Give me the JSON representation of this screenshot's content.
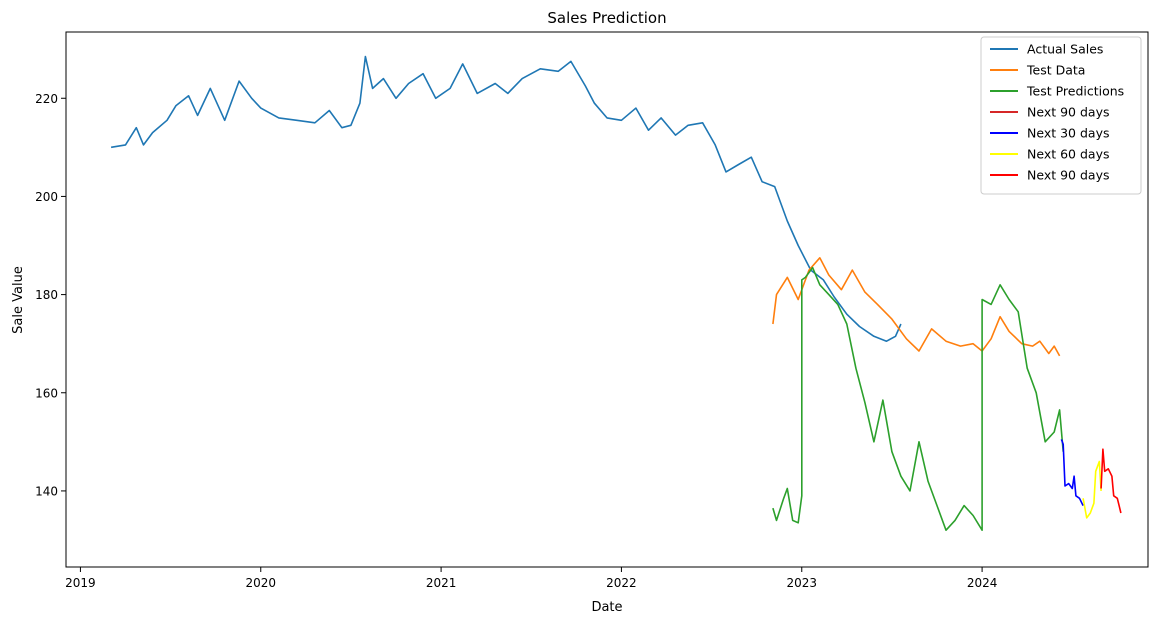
{
  "chart_data": {
    "type": "line",
    "title": "Sales Prediction",
    "xlabel": "Date",
    "ylabel": "Sale Value",
    "xlim": [
      2018.92,
      2024.92
    ],
    "ylim": [
      124.5,
      233.5
    ],
    "x_ticks": [
      {
        "value": 2019,
        "label": "2019"
      },
      {
        "value": 2020,
        "label": "2020"
      },
      {
        "value": 2021,
        "label": "2021"
      },
      {
        "value": 2022,
        "label": "2022"
      },
      {
        "value": 2023,
        "label": "2023"
      },
      {
        "value": 2024,
        "label": "2024"
      }
    ],
    "y_ticks": [
      {
        "value": 140,
        "label": "140"
      },
      {
        "value": 160,
        "label": "160"
      },
      {
        "value": 180,
        "label": "180"
      },
      {
        "value": 200,
        "label": "200"
      },
      {
        "value": 220,
        "label": "220"
      }
    ],
    "legend_position": "top-right",
    "series": [
      {
        "name": "Actual Sales",
        "color": "#1f77b4",
        "points": [
          [
            2019.17,
            210.0
          ],
          [
            2019.25,
            210.5
          ],
          [
            2019.31,
            214.0
          ],
          [
            2019.35,
            210.5
          ],
          [
            2019.4,
            213.0
          ],
          [
            2019.48,
            215.5
          ],
          [
            2019.53,
            218.5
          ],
          [
            2019.6,
            220.5
          ],
          [
            2019.65,
            216.5
          ],
          [
            2019.72,
            222.0
          ],
          [
            2019.8,
            215.5
          ],
          [
            2019.88,
            223.5
          ],
          [
            2019.95,
            220.0
          ],
          [
            2020.0,
            218.0
          ],
          [
            2020.1,
            216.0
          ],
          [
            2020.2,
            215.5
          ],
          [
            2020.3,
            215.0
          ],
          [
            2020.38,
            217.5
          ],
          [
            2020.45,
            214.0
          ],
          [
            2020.5,
            214.5
          ],
          [
            2020.55,
            219.0
          ],
          [
            2020.58,
            228.5
          ],
          [
            2020.62,
            222.0
          ],
          [
            2020.68,
            224.0
          ],
          [
            2020.75,
            220.0
          ],
          [
            2020.82,
            223.0
          ],
          [
            2020.9,
            225.0
          ],
          [
            2020.97,
            220.0
          ],
          [
            2021.05,
            222.0
          ],
          [
            2021.12,
            227.0
          ],
          [
            2021.2,
            221.0
          ],
          [
            2021.3,
            223.0
          ],
          [
            2021.37,
            221.0
          ],
          [
            2021.45,
            224.0
          ],
          [
            2021.55,
            226.0
          ],
          [
            2021.65,
            225.5
          ],
          [
            2021.72,
            227.5
          ],
          [
            2021.8,
            222.5
          ],
          [
            2021.85,
            219.0
          ],
          [
            2021.92,
            216.0
          ],
          [
            2022.0,
            215.5
          ],
          [
            2022.08,
            218.0
          ],
          [
            2022.15,
            213.5
          ],
          [
            2022.22,
            216.0
          ],
          [
            2022.3,
            212.5
          ],
          [
            2022.37,
            214.5
          ],
          [
            2022.45,
            215.0
          ],
          [
            2022.52,
            210.5
          ],
          [
            2022.58,
            205.0
          ],
          [
            2022.65,
            206.5
          ],
          [
            2022.72,
            208.0
          ],
          [
            2022.78,
            203.0
          ],
          [
            2022.85,
            202.0
          ],
          [
            2022.92,
            195.0
          ],
          [
            2022.98,
            190.0
          ],
          [
            2023.05,
            185.0
          ],
          [
            2023.12,
            183.0
          ],
          [
            2023.18,
            179.5
          ],
          [
            2023.25,
            176.0
          ],
          [
            2023.32,
            173.5
          ],
          [
            2023.4,
            171.5
          ],
          [
            2023.47,
            170.5
          ],
          [
            2023.52,
            171.5
          ],
          [
            2023.55,
            174.0
          ]
        ]
      },
      {
        "name": "Test Data",
        "color": "#ff7f0e",
        "points": [
          [
            2022.84,
            174.0
          ],
          [
            2022.86,
            180.0
          ],
          [
            2022.92,
            183.5
          ],
          [
            2022.98,
            179.0
          ],
          [
            2023.04,
            185.0
          ],
          [
            2023.1,
            187.5
          ],
          [
            2023.15,
            184.0
          ],
          [
            2023.22,
            181.0
          ],
          [
            2023.28,
            185.0
          ],
          [
            2023.35,
            180.5
          ],
          [
            2023.42,
            178.0
          ],
          [
            2023.5,
            175.0
          ],
          [
            2023.58,
            171.0
          ],
          [
            2023.65,
            168.5
          ],
          [
            2023.72,
            173.0
          ],
          [
            2023.8,
            170.5
          ],
          [
            2023.88,
            169.5
          ],
          [
            2023.95,
            170.0
          ],
          [
            2024.0,
            168.5
          ],
          [
            2024.05,
            171.0
          ],
          [
            2024.1,
            175.5
          ],
          [
            2024.15,
            172.5
          ],
          [
            2024.22,
            170.0
          ],
          [
            2024.28,
            169.5
          ],
          [
            2024.32,
            170.5
          ],
          [
            2024.37,
            168.0
          ],
          [
            2024.4,
            169.5
          ],
          [
            2024.43,
            167.5
          ]
        ]
      },
      {
        "name": "Test Predictions",
        "color": "#2ca02c",
        "points": [
          [
            2022.84,
            136.5
          ],
          [
            2022.86,
            134.0
          ],
          [
            2022.9,
            138.5
          ],
          [
            2022.92,
            140.5
          ],
          [
            2022.95,
            134.0
          ],
          [
            2022.98,
            133.5
          ],
          [
            2023.0,
            139.0
          ],
          [
            2023.0,
            183.0
          ],
          [
            2023.02,
            183.5
          ],
          [
            2023.06,
            185.5
          ],
          [
            2023.1,
            182.0
          ],
          [
            2023.15,
            180.0
          ],
          [
            2023.2,
            178.0
          ],
          [
            2023.25,
            174.0
          ],
          [
            2023.3,
            165.0
          ],
          [
            2023.35,
            158.0
          ],
          [
            2023.4,
            150.0
          ],
          [
            2023.45,
            158.5
          ],
          [
            2023.5,
            148.0
          ],
          [
            2023.55,
            143.0
          ],
          [
            2023.6,
            140.0
          ],
          [
            2023.65,
            150.0
          ],
          [
            2023.7,
            142.0
          ],
          [
            2023.75,
            137.0
          ],
          [
            2023.8,
            132.0
          ],
          [
            2023.85,
            134.0
          ],
          [
            2023.9,
            137.0
          ],
          [
            2023.95,
            135.0
          ],
          [
            2024.0,
            132.0
          ],
          [
            2024.0,
            179.0
          ],
          [
            2024.05,
            178.0
          ],
          [
            2024.1,
            182.0
          ],
          [
            2024.15,
            179.0
          ],
          [
            2024.2,
            176.5
          ],
          [
            2024.25,
            165.0
          ],
          [
            2024.3,
            160.0
          ],
          [
            2024.35,
            150.0
          ],
          [
            2024.4,
            152.0
          ],
          [
            2024.43,
            156.5
          ],
          [
            2024.45,
            148.0
          ]
        ]
      },
      {
        "name": "Next 90 days",
        "color": "#d62728",
        "points": []
      },
      {
        "name": "Next 30 days",
        "color": "#0000ff",
        "points": [
          [
            2024.44,
            150.5
          ],
          [
            2024.45,
            149.5
          ],
          [
            2024.46,
            141.0
          ],
          [
            2024.48,
            141.5
          ],
          [
            2024.5,
            140.5
          ],
          [
            2024.51,
            143.0
          ],
          [
            2024.52,
            139.0
          ],
          [
            2024.54,
            138.5
          ],
          [
            2024.56,
            137.0
          ]
        ]
      },
      {
        "name": "Next 60 days",
        "color": "#ffff00",
        "points": [
          [
            2024.56,
            138.5
          ],
          [
            2024.58,
            134.5
          ],
          [
            2024.6,
            135.5
          ],
          [
            2024.62,
            137.5
          ],
          [
            2024.63,
            144.0
          ],
          [
            2024.65,
            146.0
          ],
          [
            2024.66,
            140.0
          ]
        ]
      },
      {
        "name": "Next 90 days",
        "color": "#ff0000",
        "points": [
          [
            2024.66,
            140.5
          ],
          [
            2024.67,
            148.5
          ],
          [
            2024.68,
            144.0
          ],
          [
            2024.7,
            144.5
          ],
          [
            2024.72,
            143.0
          ],
          [
            2024.73,
            139.0
          ],
          [
            2024.75,
            138.5
          ],
          [
            2024.76,
            137.0
          ],
          [
            2024.77,
            135.5
          ]
        ]
      }
    ]
  }
}
